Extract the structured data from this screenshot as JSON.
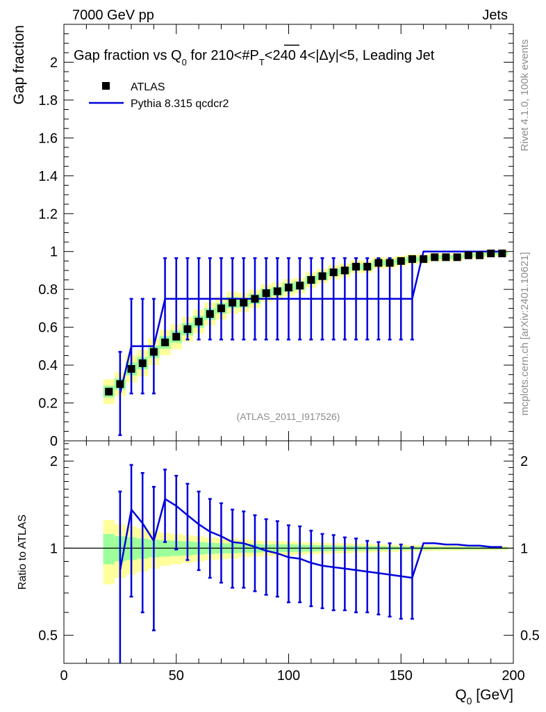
{
  "header": {
    "left": "7000 GeV pp",
    "right": "Jets"
  },
  "side": {
    "rivet": "Rivet 4.1.0,  100k events",
    "mcplots": "mcplots.cern.ch [arXiv:2401.10621]"
  },
  "colors": {
    "mc": "#0000dd",
    "band_inner": "#9bff9b",
    "band_outer": "#ffff9b",
    "data": "#000000"
  },
  "chart_data": {
    "type": "scatter",
    "title": "Gap fraction vs Q0 for 210<#PT<240  4<|Δy|<5, Leading Jet",
    "title_parts": {
      "a": "Gap fraction vs Q",
      "sub0": "0",
      "b": " for 210<#",
      "pt": "P",
      "sub1": "T",
      "c": "<240  4<|Δy|<5, Leading Jet"
    },
    "xlabel": "Q0 [GeV]",
    "xlabel_parts": {
      "q": "Q",
      "sub": "0",
      "rest": " [GeV]"
    },
    "ylabel": "Gap fraction",
    "ratio_ylabel": "Ratio to ATLAS",
    "watermark": "(ATLAS_2011_I917526)",
    "xlim": [
      0,
      200
    ],
    "ylim": [
      0,
      2.2
    ],
    "ratio_ylim": [
      0.4,
      2.35
    ],
    "x_ticks": [
      "0",
      "50",
      "100",
      "150",
      "200"
    ],
    "y_ticks": [
      "0",
      "0.2",
      "0.4",
      "0.6",
      "0.8",
      "1",
      "1.2",
      "1.4",
      "1.6",
      "1.8",
      "2"
    ],
    "ratio_ticks": [
      "0.5",
      "1",
      "2"
    ],
    "legend": {
      "data": "ATLAS",
      "mc": "Pythia 8.315 qcdcr2"
    },
    "data": {
      "name": "ATLAS",
      "x": [
        20,
        25,
        30,
        35,
        40,
        45,
        50,
        55,
        60,
        65,
        70,
        75,
        80,
        85,
        90,
        95,
        100,
        105,
        110,
        115,
        120,
        125,
        130,
        135,
        140,
        145,
        150,
        155,
        160,
        165,
        170,
        175,
        180,
        185,
        190,
        195
      ],
      "y": [
        0.26,
        0.3,
        0.38,
        0.41,
        0.47,
        0.52,
        0.55,
        0.59,
        0.63,
        0.67,
        0.7,
        0.73,
        0.73,
        0.75,
        0.78,
        0.79,
        0.81,
        0.82,
        0.85,
        0.87,
        0.89,
        0.9,
        0.92,
        0.92,
        0.94,
        0.94,
        0.95,
        0.96,
        0.96,
        0.97,
        0.97,
        0.97,
        0.98,
        0.98,
        0.99,
        0.99
      ],
      "band_inner": [
        0.12,
        0.1,
        0.09,
        0.08,
        0.07,
        0.065,
        0.06,
        0.055,
        0.05,
        0.045,
        0.04,
        0.04,
        0.035,
        0.035,
        0.03,
        0.03,
        0.03,
        0.028,
        0.026,
        0.024,
        0.022,
        0.02,
        0.02,
        0.018,
        0.016,
        0.015,
        0.014,
        0.013,
        0.012,
        0.011,
        0.01,
        0.01,
        0.01,
        0.009,
        0.008,
        0.008
      ],
      "band_outer": [
        0.25,
        0.21,
        0.19,
        0.17,
        0.15,
        0.13,
        0.12,
        0.11,
        0.1,
        0.09,
        0.085,
        0.08,
        0.07,
        0.065,
        0.06,
        0.058,
        0.055,
        0.05,
        0.048,
        0.045,
        0.042,
        0.04,
        0.037,
        0.035,
        0.032,
        0.03,
        0.028,
        0.026,
        0.024,
        0.022,
        0.02,
        0.019,
        0.018,
        0.017,
        0.016,
        0.015
      ]
    },
    "mc": {
      "name": "Pythia 8.315 qcdcr2",
      "x": [
        25,
        30,
        35,
        40,
        45,
        50,
        55,
        60,
        65,
        70,
        75,
        80,
        85,
        90,
        95,
        100,
        105,
        110,
        115,
        120,
        125,
        130,
        135,
        140,
        145,
        150,
        155,
        160,
        165,
        170,
        175,
        180,
        185,
        190,
        195
      ],
      "y": [
        0.25,
        0.5,
        0.5,
        0.5,
        0.75,
        0.75,
        0.75,
        0.75,
        0.75,
        0.75,
        0.75,
        0.75,
        0.75,
        0.75,
        0.75,
        0.75,
        0.75,
        0.75,
        0.75,
        0.75,
        0.75,
        0.75,
        0.75,
        0.75,
        0.75,
        0.75,
        0.75,
        1.0,
        1.0,
        1.0,
        1.0,
        1.0,
        1.0,
        1.0,
        1.0
      ],
      "err": [
        0.22,
        0.25,
        0.25,
        0.25,
        0.215,
        0.215,
        0.215,
        0.215,
        0.215,
        0.215,
        0.215,
        0.215,
        0.215,
        0.215,
        0.215,
        0.215,
        0.215,
        0.215,
        0.215,
        0.215,
        0.215,
        0.215,
        0.215,
        0.215,
        0.215,
        0.215,
        0.215,
        0,
        0,
        0,
        0,
        0,
        0,
        0,
        0
      ]
    },
    "ratio": {
      "x": [
        25,
        30,
        35,
        40,
        45,
        50,
        55,
        60,
        65,
        70,
        75,
        80,
        85,
        90,
        95,
        100,
        105,
        110,
        115,
        120,
        125,
        130,
        135,
        140,
        145,
        150,
        155,
        160,
        165,
        170,
        175,
        180,
        185,
        190,
        195
      ],
      "y": [
        0.84,
        1.36,
        1.22,
        1.06,
        1.48,
        1.4,
        1.3,
        1.21,
        1.14,
        1.1,
        1.05,
        1.04,
        1.01,
        0.98,
        0.96,
        0.93,
        0.92,
        0.89,
        0.87,
        0.86,
        0.85,
        0.84,
        0.83,
        0.82,
        0.81,
        0.8,
        0.79,
        1.04,
        1.04,
        1.03,
        1.03,
        1.02,
        1.02,
        1.01,
        1.01
      ],
      "err_lo": [
        0.55,
        0.68,
        0.62,
        0.54,
        0.43,
        0.41,
        0.39,
        0.37,
        0.35,
        0.34,
        0.32,
        0.31,
        0.3,
        0.29,
        0.28,
        0.28,
        0.27,
        0.26,
        0.25,
        0.25,
        0.24,
        0.24,
        0.23,
        0.23,
        0.23,
        0.23,
        0.22,
        0,
        0,
        0,
        0,
        0,
        0,
        0,
        0
      ],
      "err_hi": [
        0.73,
        0.58,
        0.6,
        0.57,
        0.39,
        0.38,
        0.37,
        0.36,
        0.34,
        0.33,
        0.31,
        0.3,
        0.29,
        0.28,
        0.28,
        0.27,
        0.27,
        0.26,
        0.25,
        0.25,
        0.24,
        0.24,
        0.23,
        0.23,
        0.23,
        0.23,
        0.22,
        0,
        0,
        0,
        0,
        0,
        0,
        0,
        0
      ]
    }
  }
}
